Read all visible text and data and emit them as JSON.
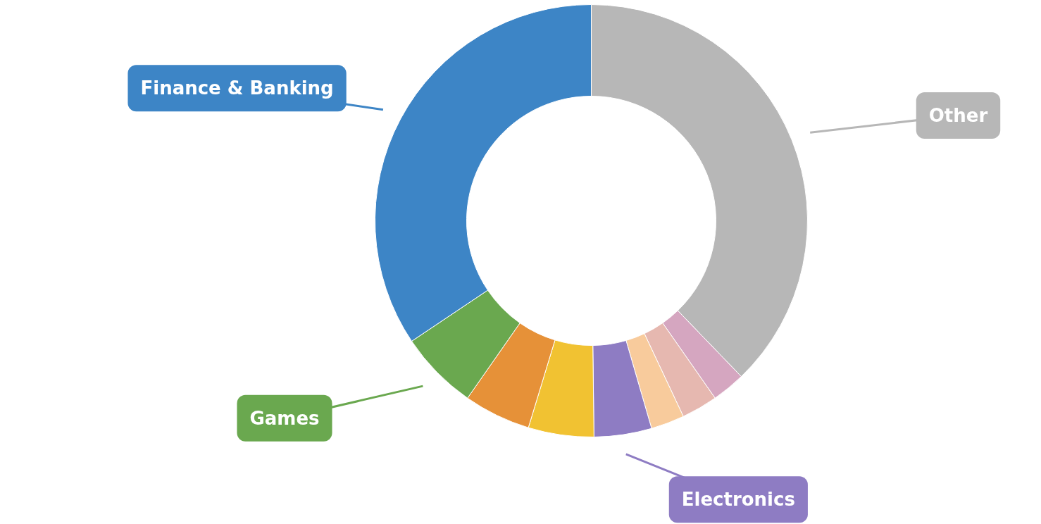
{
  "chart_data": {
    "type": "donut",
    "categories": [
      "Other",
      null,
      null,
      null,
      "Electronics",
      null,
      null,
      "Games",
      "Finance & Banking"
    ],
    "values": [
      37.8,
      2.5,
      2.7,
      2.5,
      4.3,
      4.9,
      5.0,
      5.9,
      34.4
    ],
    "colors": [
      "#b7b7b7",
      "#d5a6c0",
      "#e6b8b0",
      "#f8cb9c",
      "#8e7cc3",
      "#f1c232",
      "#e69138",
      "#6aa84f",
      "#3d85c6"
    ]
  }
}
